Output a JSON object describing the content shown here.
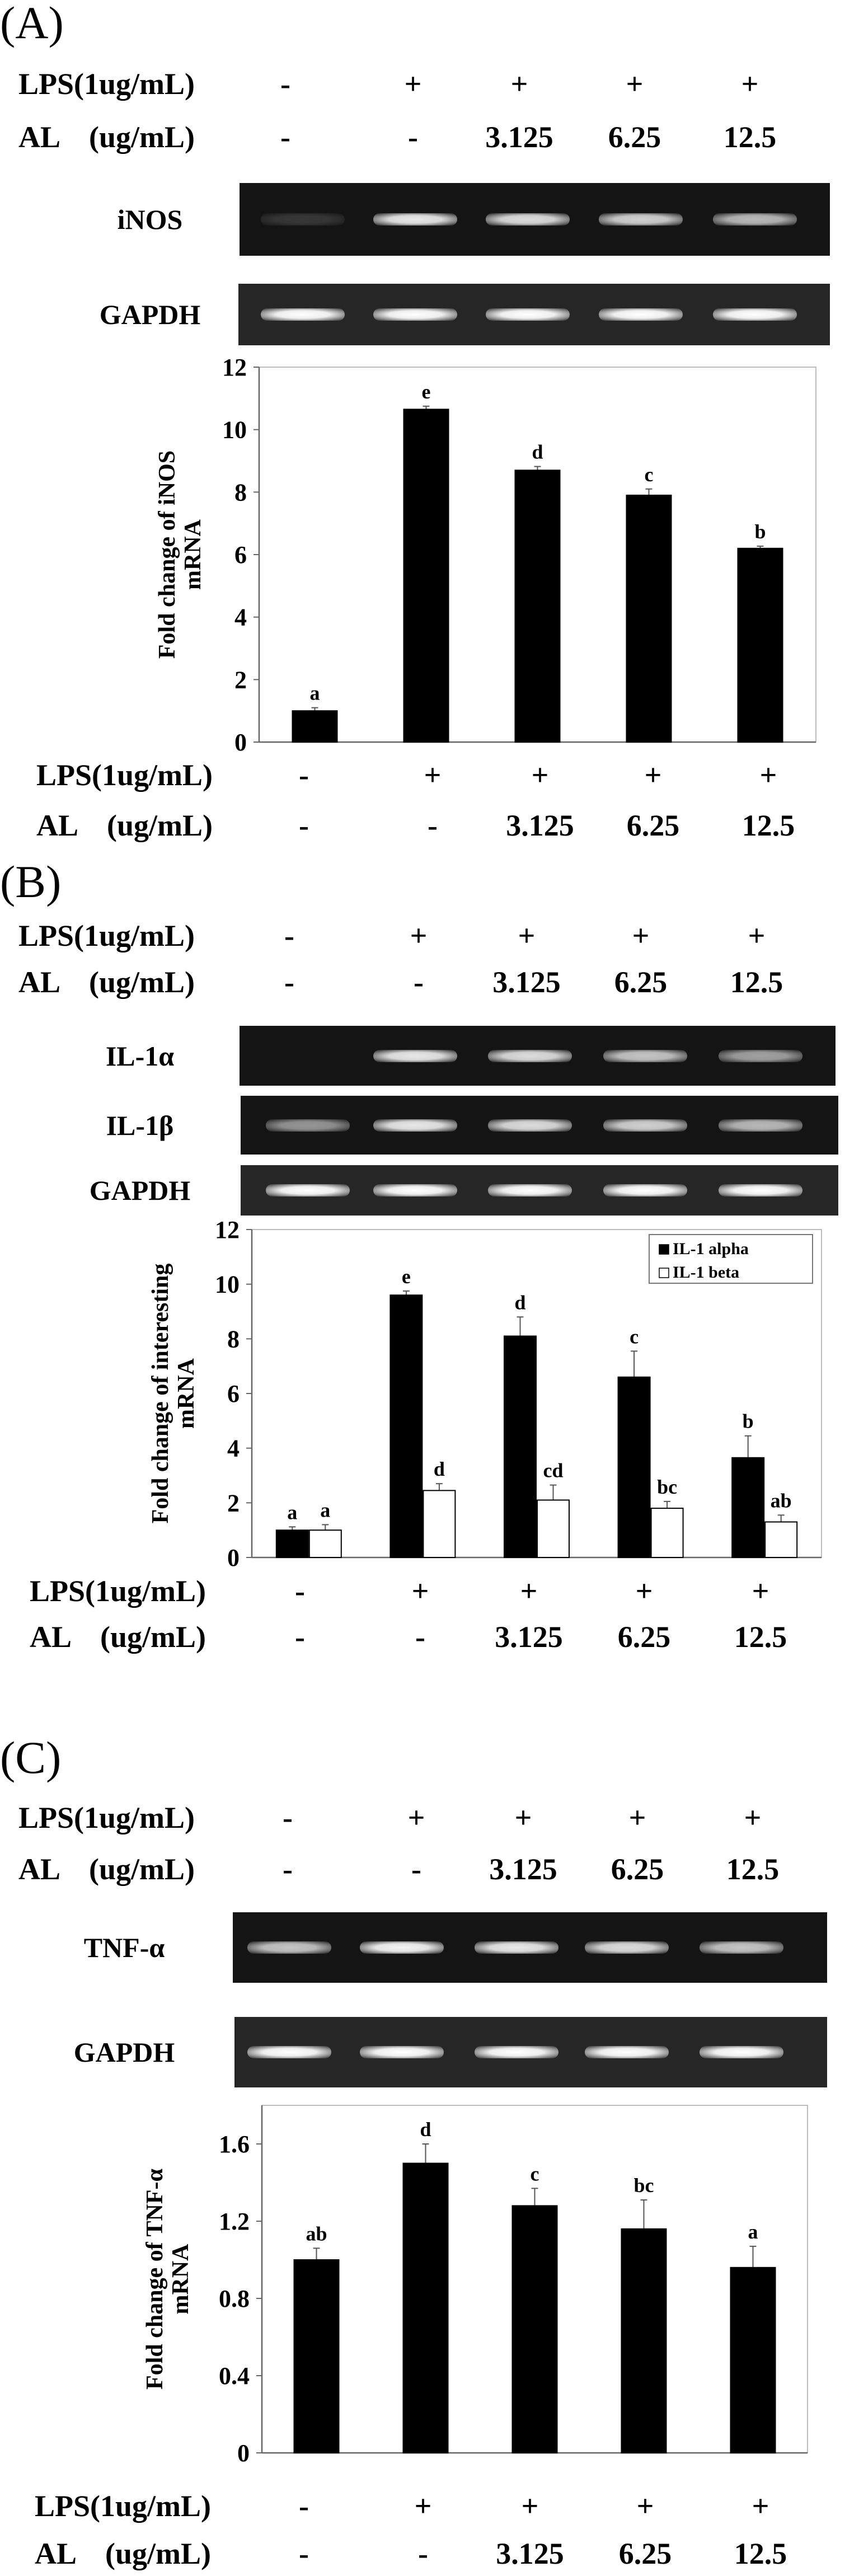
{
  "panels": [
    {
      "label": "(A)",
      "conditions": {
        "lps_label": "LPS(1ug/mL)",
        "al_label": "AL    (ug/mL)",
        "lps": [
          "-",
          "+",
          "+",
          "+",
          "+"
        ],
        "al": [
          "-",
          "-",
          "3.125",
          "6.25",
          "12.5"
        ]
      },
      "gels": [
        {
          "name": "iNOS",
          "band_intensity": [
            0.15,
            0.9,
            0.85,
            0.8,
            0.7
          ]
        },
        {
          "name": "GAPDH",
          "band_intensity": [
            1,
            1,
            1,
            1,
            1
          ]
        }
      ]
    },
    {
      "label": "(B)",
      "conditions": {
        "lps_label": "LPS(1ug/mL)",
        "al_label": "AL    (ug/mL)",
        "lps": [
          "-",
          "+",
          "+",
          "+",
          "+"
        ],
        "al": [
          "-",
          "-",
          "3.125",
          "6.25",
          "12.5"
        ]
      },
      "gels": [
        {
          "name": "IL-1α",
          "band_intensity": [
            0,
            0.9,
            0.85,
            0.75,
            0.6
          ]
        },
        {
          "name": "IL-1β",
          "band_intensity": [
            0.55,
            0.9,
            0.85,
            0.8,
            0.7
          ]
        },
        {
          "name": "GAPDH",
          "band_intensity": [
            1,
            1,
            1,
            1,
            1
          ]
        }
      ]
    },
    {
      "label": "(C)",
      "conditions": {
        "lps_label": "LPS(1ug/mL)",
        "al_label": "AL    (ug/mL)",
        "lps": [
          "-",
          "+",
          "+",
          "+",
          "+"
        ],
        "al": [
          "-",
          "-",
          "3.125",
          "6.25",
          "12.5"
        ]
      },
      "gels": [
        {
          "name": "TNF-α",
          "band_intensity": [
            0.75,
            0.95,
            0.9,
            0.85,
            0.75
          ]
        },
        {
          "name": "GAPDH",
          "band_intensity": [
            1,
            1,
            1,
            1,
            1
          ]
        }
      ]
    }
  ],
  "chart_data": [
    {
      "type": "bar",
      "ylabel": [
        "Fold change of iNOS",
        "mRNA"
      ],
      "ylim": [
        0,
        12
      ],
      "yticks": [
        "0",
        "2",
        "4",
        "6",
        "8",
        "10",
        "12"
      ],
      "ytick_values": [
        0,
        2,
        4,
        6,
        8,
        10,
        12
      ],
      "x_rows": {
        "lps_label": "LPS(1ug/mL)",
        "lps": [
          "-",
          "+",
          "+",
          "+",
          "+"
        ],
        "al_label": "AL    (ug/mL)",
        "al": [
          "-",
          "-",
          "3.125",
          "6.25",
          "12.5"
        ]
      },
      "legend": null,
      "series": [
        {
          "name": "iNOS",
          "color": "#000000",
          "values": [
            1.0,
            10.65,
            8.7,
            7.9,
            6.2
          ],
          "errors": [
            0.1,
            0.1,
            0.12,
            0.2,
            0.07
          ],
          "letters": [
            "a",
            "e",
            "d",
            "c",
            "b"
          ]
        }
      ]
    },
    {
      "type": "bar",
      "ylabel": [
        "Fold change of interesting",
        "mRNA"
      ],
      "ylim": [
        0,
        12
      ],
      "yticks": [
        "0",
        "2",
        "4",
        "6",
        "8",
        "10",
        "12"
      ],
      "ytick_values": [
        0,
        2,
        4,
        6,
        8,
        10,
        12
      ],
      "x_rows": {
        "lps_label": "LPS(1ug/mL)",
        "lps": [
          "-",
          "+",
          "+",
          "+",
          "+"
        ],
        "al_label": "AL    (ug/mL)",
        "al": [
          "-",
          "-",
          "3.125",
          "6.25",
          "12.5"
        ]
      },
      "legend": "top-right",
      "series": [
        {
          "name": "IL-1 alpha",
          "color": "#000000",
          "values": [
            1.0,
            9.6,
            8.1,
            6.6,
            3.65
          ],
          "errors": [
            0.12,
            0.15,
            0.7,
            0.95,
            0.8
          ],
          "letters": [
            "a",
            "e",
            "d",
            "c",
            "b"
          ]
        },
        {
          "name": "IL-1 beta",
          "color": "#ffffff",
          "values": [
            1.0,
            2.45,
            2.1,
            1.8,
            1.3
          ],
          "errors": [
            0.2,
            0.25,
            0.55,
            0.25,
            0.25
          ],
          "letters": [
            "a",
            "d",
            "cd",
            "bc",
            "ab"
          ]
        }
      ]
    },
    {
      "type": "bar",
      "ylabel": [
        "Fold change of TNF-α",
        "mRNA"
      ],
      "ylim": [
        0,
        1.8
      ],
      "yticks": [
        "0",
        "0.4",
        "0.8",
        "1.2",
        "1.6"
      ],
      "ytick_values": [
        0,
        0.4,
        0.8,
        1.2,
        1.6
      ],
      "x_rows": {
        "lps_label": "LPS(1ug/mL)",
        "lps": [
          "-",
          "+",
          "+",
          "+",
          "+"
        ],
        "al_label": "AL    (ug/mL)",
        "al": [
          "-",
          "-",
          "3.125",
          "6.25",
          "12.5"
        ]
      },
      "legend": null,
      "series": [
        {
          "name": "TNF-α",
          "color": "#000000",
          "values": [
            1.0,
            1.5,
            1.28,
            1.16,
            0.96
          ],
          "errors": [
            0.06,
            0.1,
            0.09,
            0.15,
            0.11
          ],
          "letters": [
            "ab",
            "d",
            "c",
            "bc",
            "a"
          ]
        }
      ]
    }
  ]
}
